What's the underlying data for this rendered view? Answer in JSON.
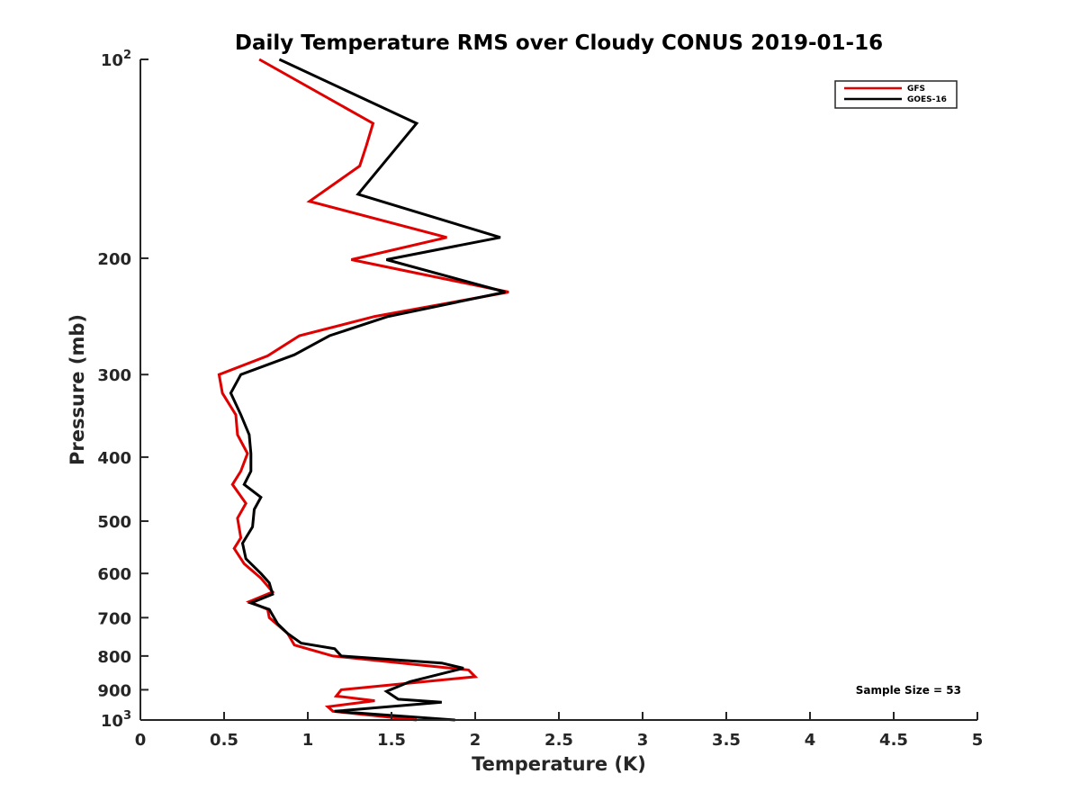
{
  "chart_data": {
    "type": "line",
    "title": "Daily Temperature RMS over Cloudy CONUS 2019-01-16",
    "xlabel": "Temperature (K)",
    "ylabel": "Pressure (mb)",
    "xlim": [
      0,
      5
    ],
    "ylim": [
      100,
      1000
    ],
    "y_scale": "log",
    "y_reversed": true,
    "x_ticks": [
      0,
      0.5,
      1,
      1.5,
      2,
      2.5,
      3,
      3.5,
      4,
      4.5,
      5
    ],
    "x_tick_labels": [
      "0",
      "0.5",
      "1",
      "1.5",
      "2",
      "2.5",
      "3",
      "3.5",
      "4",
      "4.5",
      "5"
    ],
    "y_ticks": [
      100,
      200,
      300,
      400,
      500,
      600,
      700,
      800,
      900,
      1000
    ],
    "y_tick_labels": [
      {
        "base": "10",
        "sup": "2"
      },
      {
        "base": "200",
        "sup": ""
      },
      {
        "base": "300",
        "sup": ""
      },
      {
        "base": "400",
        "sup": ""
      },
      {
        "base": "500",
        "sup": ""
      },
      {
        "base": "600",
        "sup": ""
      },
      {
        "base": "700",
        "sup": ""
      },
      {
        "base": "800",
        "sup": ""
      },
      {
        "base": "900",
        "sup": ""
      },
      {
        "base": "10",
        "sup": "3"
      }
    ],
    "grid": false,
    "legend_position": "top-right",
    "annotation": "Sample Size = 53",
    "series": [
      {
        "name": "GFS",
        "color": "#e00000",
        "points": [
          [
            0.71,
            100
          ],
          [
            1.39,
            125
          ],
          [
            1.35,
            135
          ],
          [
            1.31,
            145
          ],
          [
            1.01,
            164
          ],
          [
            1.83,
            186
          ],
          [
            1.26,
            201
          ],
          [
            2.2,
            225
          ],
          [
            1.4,
            245
          ],
          [
            0.95,
            262
          ],
          [
            0.76,
            281
          ],
          [
            0.47,
            300
          ],
          [
            0.49,
            320
          ],
          [
            0.57,
            345
          ],
          [
            0.58,
            370
          ],
          [
            0.64,
            395
          ],
          [
            0.6,
            420
          ],
          [
            0.55,
            440
          ],
          [
            0.63,
            470
          ],
          [
            0.58,
            495
          ],
          [
            0.6,
            530
          ],
          [
            0.56,
            550
          ],
          [
            0.62,
            580
          ],
          [
            0.72,
            610
          ],
          [
            0.79,
            640
          ],
          [
            0.65,
            662
          ],
          [
            0.76,
            680
          ],
          [
            0.77,
            700
          ],
          [
            0.88,
            740
          ],
          [
            0.92,
            770
          ],
          [
            1.15,
            800
          ],
          [
            1.96,
            840
          ],
          [
            2.0,
            860
          ],
          [
            1.2,
            900
          ],
          [
            1.17,
            920
          ],
          [
            1.4,
            935
          ],
          [
            1.12,
            955
          ],
          [
            1.15,
            970
          ],
          [
            1.65,
            1000
          ]
        ]
      },
      {
        "name": "GOES-16",
        "color": "#000000",
        "points": [
          [
            0.83,
            100
          ],
          [
            1.65,
            125
          ],
          [
            1.3,
            160
          ],
          [
            2.15,
            186
          ],
          [
            1.47,
            201
          ],
          [
            2.18,
            225
          ],
          [
            1.48,
            245
          ],
          [
            1.13,
            262
          ],
          [
            0.92,
            280
          ],
          [
            0.6,
            300
          ],
          [
            0.54,
            320
          ],
          [
            0.6,
            345
          ],
          [
            0.65,
            370
          ],
          [
            0.66,
            395
          ],
          [
            0.66,
            420
          ],
          [
            0.62,
            440
          ],
          [
            0.72,
            460
          ],
          [
            0.68,
            480
          ],
          [
            0.67,
            510
          ],
          [
            0.61,
            540
          ],
          [
            0.63,
            570
          ],
          [
            0.72,
            600
          ],
          [
            0.77,
            620
          ],
          [
            0.79,
            645
          ],
          [
            0.66,
            665
          ],
          [
            0.77,
            680
          ],
          [
            0.82,
            715
          ],
          [
            0.88,
            740
          ],
          [
            0.96,
            765
          ],
          [
            1.16,
            780
          ],
          [
            1.2,
            800
          ],
          [
            1.8,
            820
          ],
          [
            1.93,
            835
          ],
          [
            1.61,
            875
          ],
          [
            1.47,
            905
          ],
          [
            1.54,
            930
          ],
          [
            1.8,
            940
          ],
          [
            1.16,
            970
          ],
          [
            1.88,
            1000
          ]
        ]
      }
    ]
  }
}
